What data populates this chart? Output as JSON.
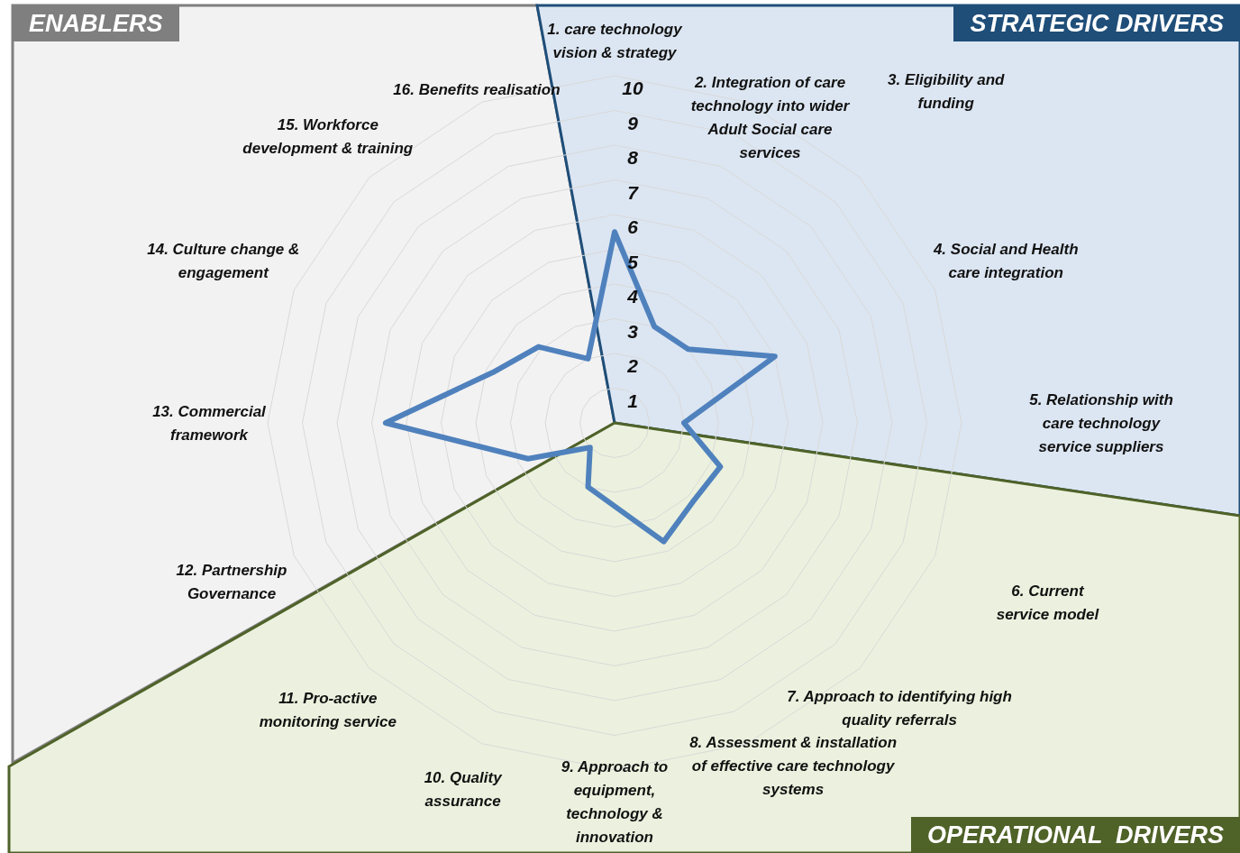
{
  "chart_data": {
    "type": "radar",
    "categories": [
      "1. care technology vision & strategy",
      "2. Integration of care technology into wider Adult Social care services",
      "3. Eligibility and funding",
      "4. Social and Health care integration",
      "5. Relationship with care technology service suppliers",
      "6. Current service model",
      "7. Approach to identifying high quality referrals",
      "8. Assessment & installation of effective care technology systems",
      "9. Approach to equipment, technology & innovation",
      "10. Quality assurance",
      "11. Pro-active monitoring service",
      "12. Partnership Governance",
      "13. Commercial framework",
      "14. Culture change & engagement",
      "15. Workforce development & training",
      "16. Benefits realisation"
    ],
    "series": [
      {
        "color": "#4f81bd",
        "values": [
          5.5,
          3,
          3,
          5,
          2,
          3.3,
          3.2,
          3.7,
          2.4,
          2,
          1,
          2.7,
          6.6,
          3.8,
          3.1,
          2
        ]
      }
    ],
    "ylim": [
      0,
      10
    ],
    "yticks": [
      1,
      2,
      3,
      4,
      5,
      6,
      7,
      8,
      9,
      10
    ],
    "grid": true,
    "marker": "none",
    "annotations": [
      "ENABLERS",
      "STRATEGIC DRIVERS",
      "OPERATIONAL  DRIVERS"
    ]
  }
}
